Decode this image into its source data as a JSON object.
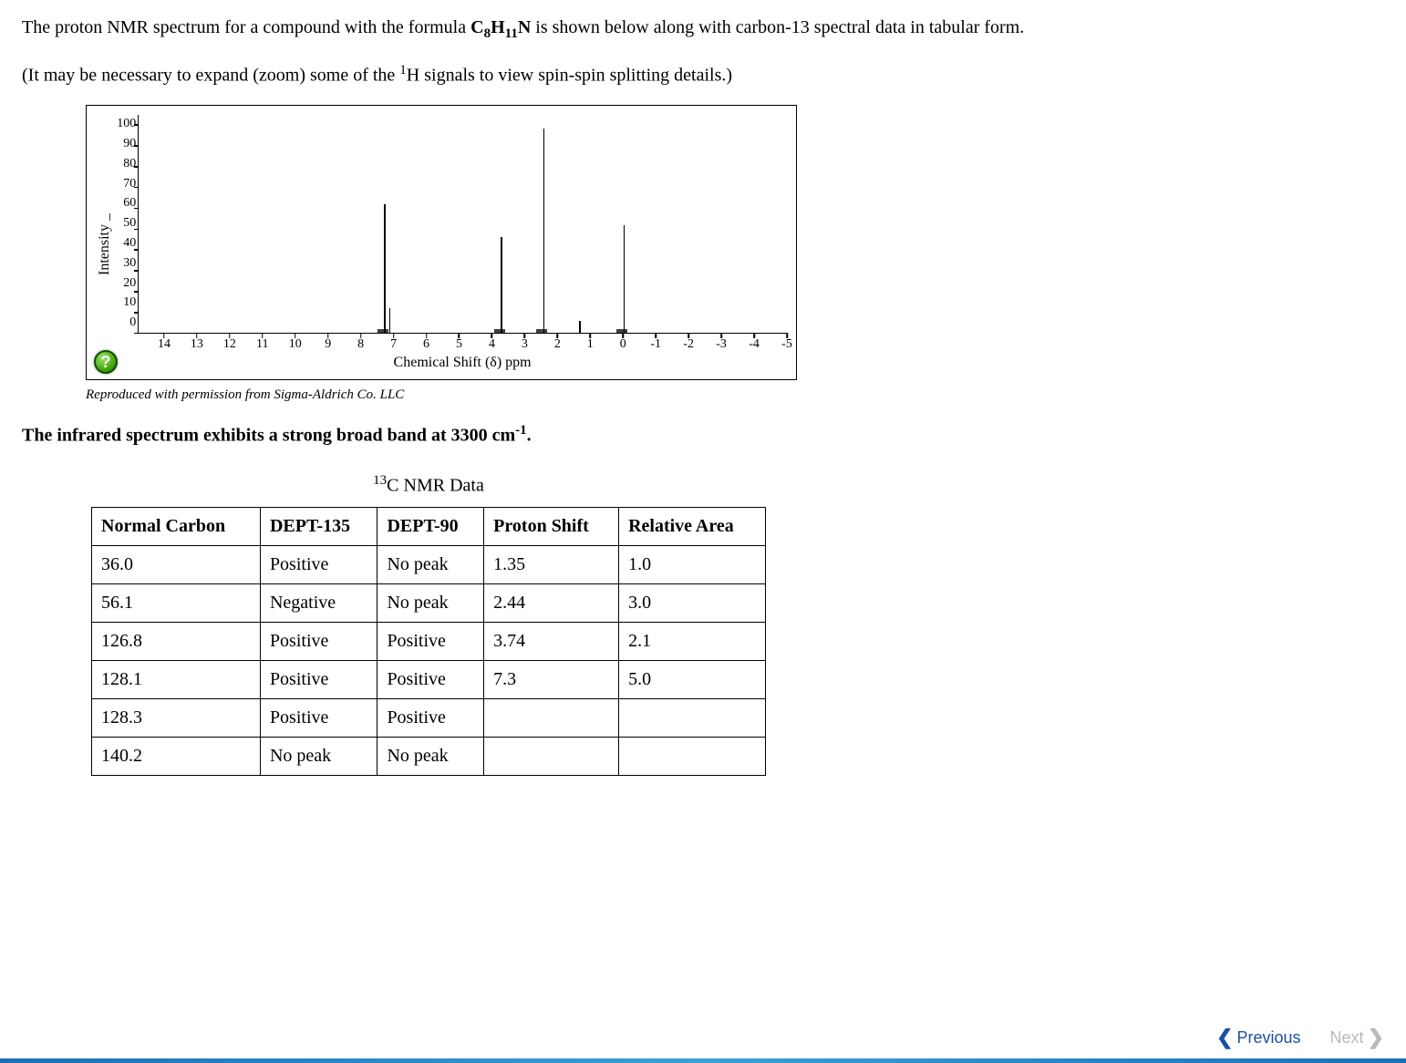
{
  "intro": {
    "p1_prefix": "The proton NMR spectrum for a compound with the formula ",
    "formula_c": "C",
    "formula_c_sub": "8",
    "formula_h": "H",
    "formula_h_sub": "11",
    "formula_n": "N",
    "p1_suffix": " is shown below along with carbon-13 spectral data in tabular form.",
    "p2_prefix": "(It may be necessary to expand (zoom) some of the ",
    "p2_sup": "1",
    "p2_h": "H",
    "p2_suffix": " signals to view spin-spin splitting details.)"
  },
  "chart": {
    "ylabel": "Intensity _",
    "xlabel": "Chemical Shift (δ) ppm",
    "xmin": -5,
    "xmax": 14.8,
    "ymin": 0,
    "ymax": 105,
    "yticks": [
      100,
      90,
      80,
      70,
      60,
      50,
      40,
      30,
      20,
      10,
      0
    ],
    "xticks": [
      14,
      13,
      12,
      11,
      10,
      9,
      8,
      7,
      6,
      5,
      4,
      3,
      2,
      1,
      0,
      -1,
      -2,
      -3,
      -4,
      -5
    ],
    "peaks": [
      {
        "shift": 7.3,
        "height": 62
      },
      {
        "shift": 7.15,
        "height": 12
      },
      {
        "shift": 3.74,
        "height": 46
      },
      {
        "shift": 2.44,
        "height": 98
      },
      {
        "shift": 1.35,
        "height": 6
      },
      {
        "shift": 0.0,
        "height": 52
      }
    ],
    "noise_at": [
      7.35,
      3.78,
      2.5,
      0.05
    ],
    "help_glyph": "?"
  },
  "caption": "Reproduced with permission from Sigma-Aldrich Co. LLC",
  "ir": {
    "prefix": "The infrared spectrum exhibits a strong broad band at 3300 cm",
    "exp": "-1",
    "suffix": "."
  },
  "table": {
    "title_sup": "13",
    "title_rest": "C NMR Data",
    "columns": [
      "Normal Carbon",
      "DEPT-135",
      "DEPT-90",
      "Proton Shift",
      "Relative Area"
    ],
    "rows": [
      [
        "36.0",
        "Positive",
        "No peak",
        "1.35",
        "1.0"
      ],
      [
        "56.1",
        "Negative",
        "No peak",
        "2.44",
        "3.0"
      ],
      [
        "126.8",
        "Positive",
        "Positive",
        "3.74",
        "2.1"
      ],
      [
        "128.1",
        "Positive",
        "Positive",
        "7.3",
        "5.0"
      ],
      [
        "128.3",
        "Positive",
        "Positive",
        "",
        ""
      ],
      [
        "140.2",
        "No peak",
        "No peak",
        "",
        ""
      ]
    ]
  },
  "nav": {
    "prev": "Previous",
    "next": "Next"
  }
}
